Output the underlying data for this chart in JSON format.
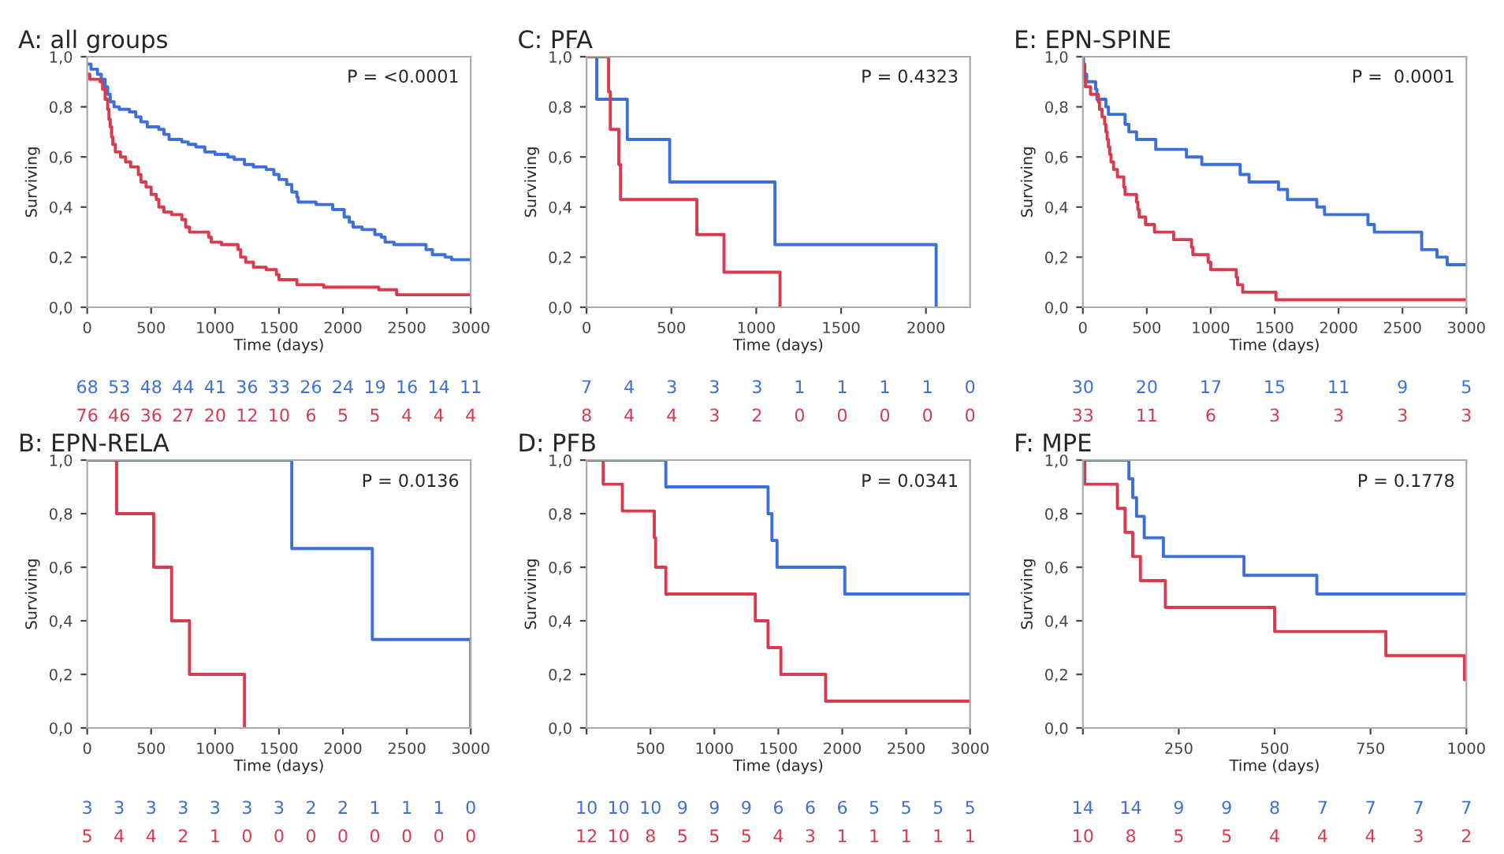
{
  "chart_data": [
    {
      "type": "step",
      "title": "A: all groups",
      "xlabel": "Time (days)",
      "ylabel": "Surviving",
      "xlim": [
        0,
        3000
      ],
      "ylim": [
        0,
        1
      ],
      "xticks": [
        0,
        500,
        1000,
        1500,
        2000,
        2500,
        3000
      ],
      "yticks": [
        {
          "value": 0,
          "label": "0,0"
        },
        {
          "value": 0.2,
          "label": "0,2"
        },
        {
          "value": 0.4,
          "label": "0,4"
        },
        {
          "value": 0.6,
          "label": "0,6"
        },
        {
          "value": 0.8,
          "label": "0,8"
        },
        {
          "value": 1,
          "label": "1,0"
        }
      ],
      "grid": false,
      "annotations": [
        "P = <0.0001",
        "68 53 48 44 41 36 33 26 24 19 16 14 11",
        "76 46 36 27 20 12 10 6 5 5 4 4 4"
      ],
      "series": [
        {
          "color": "#3d6fd9",
          "x": [
            0,
            30,
            80,
            110,
            140,
            160,
            180,
            210,
            250,
            330,
            380,
            420,
            470,
            560,
            600,
            640,
            740,
            790,
            850,
            920,
            1000,
            1100,
            1150,
            1230,
            1300,
            1400,
            1460,
            1500,
            1560,
            1600,
            1640,
            1650,
            1790,
            1920,
            2010,
            2050,
            2080,
            2150,
            2250,
            2300,
            2330,
            2400,
            2650,
            2700,
            2800,
            2850,
            3000
          ],
          "values": [
            0.97,
            0.95,
            0.93,
            0.91,
            0.88,
            0.85,
            0.82,
            0.8,
            0.79,
            0.78,
            0.76,
            0.74,
            0.72,
            0.71,
            0.69,
            0.67,
            0.66,
            0.65,
            0.64,
            0.62,
            0.61,
            0.6,
            0.59,
            0.57,
            0.56,
            0.55,
            0.53,
            0.51,
            0.49,
            0.46,
            0.44,
            0.42,
            0.41,
            0.39,
            0.36,
            0.34,
            0.32,
            0.31,
            0.29,
            0.28,
            0.26,
            0.25,
            0.23,
            0.21,
            0.2,
            0.19,
            0.19
          ]
        },
        {
          "color": "#d93a4e",
          "x": [
            0,
            20,
            100,
            120,
            140,
            160,
            170,
            180,
            190,
            200,
            220,
            260,
            300,
            340,
            400,
            420,
            460,
            500,
            540,
            560,
            600,
            660,
            740,
            770,
            800,
            950,
            970,
            1050,
            1180,
            1200,
            1240,
            1300,
            1400,
            1480,
            1500,
            1640,
            1850,
            2280,
            2420,
            3000
          ],
          "values": [
            0.93,
            0.91,
            0.9,
            0.87,
            0.83,
            0.79,
            0.75,
            0.72,
            0.68,
            0.65,
            0.62,
            0.6,
            0.58,
            0.56,
            0.53,
            0.5,
            0.48,
            0.45,
            0.43,
            0.4,
            0.38,
            0.37,
            0.35,
            0.32,
            0.3,
            0.28,
            0.26,
            0.25,
            0.23,
            0.2,
            0.18,
            0.16,
            0.15,
            0.13,
            0.11,
            0.09,
            0.08,
            0.07,
            0.05,
            0.05
          ]
        }
      ]
    },
    {
      "type": "step",
      "title": "C: PFA",
      "xlabel": "Time (days)",
      "ylabel": "Surviving",
      "xlim": [
        0,
        2260
      ],
      "ylim": [
        0,
        1
      ],
      "xticks": [
        0,
        500,
        1000,
        1500,
        2000
      ],
      "yticks": [
        {
          "value": 0,
          "label": "0,0"
        },
        {
          "value": 0.2,
          "label": "0,2"
        },
        {
          "value": 0.4,
          "label": "0,4"
        },
        {
          "value": 0.6,
          "label": "0,6"
        },
        {
          "value": 0.8,
          "label": "0,8"
        },
        {
          "value": 1,
          "label": "1,0"
        }
      ],
      "grid": false,
      "annotations": [
        "P = 0.4323",
        "7 4 3 3 3 1 1 1 1 0",
        "8 4 4 3 2 0 0 0 0 0"
      ],
      "series": [
        {
          "color": "#3d6fd9",
          "x": [
            0,
            60,
            240,
            490,
            1110,
            2060
          ],
          "values": [
            1,
            0.83,
            0.67,
            0.5,
            0.25,
            0
          ]
        },
        {
          "color": "#d93a4e",
          "x": [
            0,
            130,
            140,
            190,
            200,
            650,
            810,
            1140
          ],
          "values": [
            1,
            0.86,
            0.71,
            0.57,
            0.43,
            0.29,
            0.14,
            0
          ]
        }
      ]
    },
    {
      "type": "step",
      "title": "E: EPN-SPINE",
      "xlabel": "Time (days)",
      "ylabel": "Surviving",
      "xlim": [
        0,
        3000
      ],
      "ylim": [
        0,
        1
      ],
      "xticks": [
        0,
        500,
        1000,
        1500,
        2000,
        2500,
        3000
      ],
      "yticks": [
        {
          "value": 0,
          "label": "0,0"
        },
        {
          "value": 0.2,
          "label": "0,2"
        },
        {
          "value": 0.4,
          "label": "0,4"
        },
        {
          "value": 0.6,
          "label": "0,6"
        },
        {
          "value": 0.8,
          "label": "0,8"
        },
        {
          "value": 1,
          "label": "1,0"
        }
      ],
      "grid": false,
      "annotations": [
        "P =  0.0001",
        "30 20 17 15 11 9 5",
        "33 11 6 3 3 3 3"
      ],
      "series": [
        {
          "color": "#3d6fd9",
          "x": [
            0,
            5,
            15,
            30,
            100,
            110,
            180,
            200,
            330,
            360,
            420,
            570,
            810,
            930,
            1230,
            1300,
            1530,
            1600,
            1830,
            1890,
            2230,
            2280,
            2650,
            2770,
            2850,
            3000
          ],
          "values": [
            1,
            0.97,
            0.93,
            0.9,
            0.87,
            0.83,
            0.8,
            0.77,
            0.73,
            0.7,
            0.67,
            0.63,
            0.6,
            0.57,
            0.53,
            0.5,
            0.47,
            0.43,
            0.4,
            0.37,
            0.33,
            0.3,
            0.23,
            0.2,
            0.17,
            0.17
          ]
        },
        {
          "color": "#d93a4e",
          "x": [
            0,
            10,
            20,
            60,
            120,
            130,
            150,
            170,
            180,
            190,
            200,
            210,
            220,
            240,
            270,
            320,
            330,
            420,
            430,
            440,
            490,
            560,
            710,
            850,
            860,
            980,
            1000,
            1200,
            1210,
            1250,
            1510,
            3000
          ],
          "values": [
            0.97,
            0.91,
            0.88,
            0.85,
            0.82,
            0.79,
            0.76,
            0.73,
            0.7,
            0.67,
            0.64,
            0.61,
            0.58,
            0.55,
            0.52,
            0.48,
            0.45,
            0.42,
            0.39,
            0.36,
            0.33,
            0.3,
            0.27,
            0.24,
            0.21,
            0.18,
            0.15,
            0.12,
            0.09,
            0.06,
            0.03,
            0.03
          ]
        }
      ]
    },
    {
      "type": "step",
      "title": "B: EPN-RELA",
      "xlabel": "Time (days)",
      "ylabel": "Surviving",
      "xlim": [
        0,
        3000
      ],
      "ylim": [
        0,
        1
      ],
      "xticks": [
        0,
        500,
        1000,
        1500,
        2000,
        2500,
        3000
      ],
      "yticks": [
        {
          "value": 0,
          "label": "0,0"
        },
        {
          "value": 0.2,
          "label": "0,2"
        },
        {
          "value": 0.4,
          "label": "0,4"
        },
        {
          "value": 0.6,
          "label": "0,6"
        },
        {
          "value": 0.8,
          "label": "0,8"
        },
        {
          "value": 1,
          "label": "1,0"
        }
      ],
      "grid": false,
      "annotations": [
        "P = 0.0136",
        "3 3 3 3 3 3 3 2 2 1 1 1 0",
        "5 4 4 2 1 0 0 0 0 0 0 0 0"
      ],
      "series": [
        {
          "color": "#3d6fd9",
          "x": [
            0,
            1600,
            2230,
            3000
          ],
          "values": [
            1,
            0.67,
            0.33,
            0
          ]
        },
        {
          "color": "#d93a4e",
          "x": [
            0,
            230,
            520,
            660,
            800,
            1230
          ],
          "values": [
            1,
            0.8,
            0.6,
            0.4,
            0.2,
            0
          ]
        }
      ]
    },
    {
      "type": "step",
      "title": "D: PFB",
      "xlabel": "Time (days)",
      "ylabel": "Surviving",
      "xlim": [
        0,
        3000
      ],
      "ylim": [
        0,
        1
      ],
      "xticks": [
        {
          "value": 0,
          "label": null
        },
        500,
        1000,
        1500,
        2000,
        2500,
        3000
      ],
      "yticks": [
        {
          "value": 0,
          "label": "0,0"
        },
        {
          "value": 0.2,
          "label": "0,2"
        },
        {
          "value": 0.4,
          "label": "0,4"
        },
        {
          "value": 0.6,
          "label": "0,6"
        },
        {
          "value": 0.8,
          "label": "0,8"
        },
        {
          "value": 1,
          "label": "1,0"
        }
      ],
      "grid": false,
      "annotations": [
        "P = 0.0341",
        "10 10 10 9 9 9 6 6 6 5 5 5 5",
        "12 10 8 5 5 5 4 3 1 1 1 1 1"
      ],
      "series": [
        {
          "color": "#3d6fd9",
          "x": [
            0,
            620,
            1420,
            1450,
            1490,
            2020,
            3000
          ],
          "values": [
            1,
            0.9,
            0.8,
            0.7,
            0.6,
            0.5,
            0.5
          ]
        },
        {
          "color": "#d93a4e",
          "x": [
            0,
            130,
            280,
            530,
            540,
            620,
            1320,
            1420,
            1520,
            1870,
            3000
          ],
          "values": [
            1,
            0.91,
            0.81,
            0.71,
            0.6,
            0.5,
            0.4,
            0.3,
            0.2,
            0.1,
            0.1
          ]
        }
      ]
    },
    {
      "type": "step",
      "title": "F: MPE",
      "xlabel": "Time (days)",
      "ylabel": "Surviving",
      "xlim": [
        0,
        1000
      ],
      "ylim": [
        0,
        1
      ],
      "xticks": [
        {
          "value": 0,
          "label": null
        },
        250,
        500,
        750,
        1000
      ],
      "yticks": [
        {
          "value": 0,
          "label": "0,0"
        },
        {
          "value": 0.2,
          "label": "0,2"
        },
        {
          "value": 0.4,
          "label": "0,4"
        },
        {
          "value": 0.6,
          "label": "0,6"
        },
        {
          "value": 0.8,
          "label": "0,8"
        },
        {
          "value": 1,
          "label": "1,0"
        }
      ],
      "grid": false,
      "annotations": [
        "P = 0.1778",
        "14 14 9 9 8 7 7 7 7",
        "10 8 5 5 4 4 4 3 2"
      ],
      "series": [
        {
          "color": "#3d6fd9",
          "x": [
            0,
            120,
            130,
            140,
            160,
            210,
            420,
            610,
            1000
          ],
          "values": [
            1,
            0.93,
            0.86,
            0.79,
            0.71,
            0.64,
            0.57,
            0.5,
            0.5
          ]
        },
        {
          "color": "#d93a4e",
          "x": [
            0,
            5,
            90,
            110,
            130,
            150,
            215,
            500,
            790,
            995
          ],
          "values": [
            1,
            0.91,
            0.82,
            0.73,
            0.64,
            0.55,
            0.45,
            0.36,
            0.27,
            0.18
          ]
        }
      ]
    }
  ]
}
